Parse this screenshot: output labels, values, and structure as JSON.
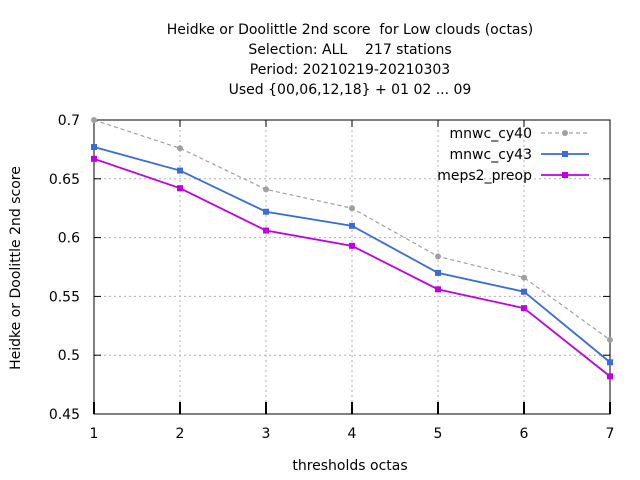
{
  "chart_data": {
    "type": "line",
    "title": [
      "Heidke or Doolittle 2nd score  for Low clouds (octas)",
      "Selection: ALL    217 stations",
      "Period: 20210219-20210303",
      "Used {00,06,12,18} + 01 02 ... 09"
    ],
    "xlabel": "thresholds octas",
    "ylabel": "Heidke or Doolittle 2nd score",
    "x": [
      1,
      2,
      3,
      4,
      5,
      6,
      7
    ],
    "xlim": [
      1,
      7
    ],
    "ylim": [
      0.45,
      0.7
    ],
    "yticks": [
      "0.45",
      "0.5",
      "0.55",
      "0.6",
      "0.65",
      "0.7"
    ],
    "xticks": [
      "1",
      "2",
      "3",
      "4",
      "5",
      "6",
      "7"
    ],
    "grid": true,
    "legend_position": "top-right",
    "series": [
      {
        "name": "mnwc_cy40",
        "color": "#a0a0a0",
        "dashed": true,
        "marker": "circle",
        "values": [
          0.7,
          0.676,
          0.641,
          0.625,
          0.584,
          0.566,
          0.513
        ]
      },
      {
        "name": "mnwc_cy43",
        "color": "#3a6cd6",
        "dashed": false,
        "marker": "square",
        "values": [
          0.677,
          0.657,
          0.622,
          0.61,
          0.57,
          0.554,
          0.494
        ]
      },
      {
        "name": "meps2_preop",
        "color": "#c000e0",
        "dashed": false,
        "marker": "square",
        "values": [
          0.667,
          0.642,
          0.606,
          0.593,
          0.556,
          0.54,
          0.482
        ]
      }
    ]
  }
}
